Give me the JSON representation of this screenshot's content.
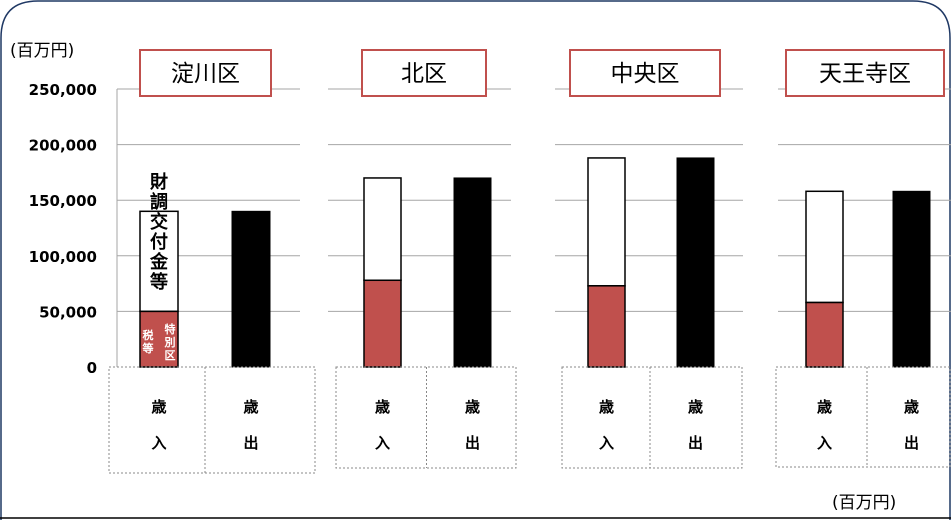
{
  "unit_label": "(百万円)",
  "unit_label_bottom": "(百万円)",
  "colors": {
    "tax_fill": "#c0504d",
    "grant_fill": "#ffffff",
    "expenditure_fill": "#000000",
    "title_border": "#c0504d",
    "frame_border": "#1f3864",
    "grid": "#a6a6a6"
  },
  "chart_data": {
    "type": "bar",
    "stacked": true,
    "ylim": [
      0,
      250000
    ],
    "y_ticks": [
      "0",
      "50,000",
      "100,000",
      "150,000",
      "200,000",
      "250,000"
    ],
    "grid": true,
    "categories": [
      "歳入",
      "歳出"
    ],
    "category_lines": [
      [
        "歳",
        "入"
      ],
      [
        "歳",
        "出"
      ]
    ],
    "annotations": {
      "grant_label": "財調交付金等",
      "tax_label_left": "税等",
      "tax_label_right": "特別区"
    },
    "panels": [
      {
        "title": "淀川区",
        "revenue": {
          "tax": 50000,
          "grant": 90000
        },
        "expenditure": 140000
      },
      {
        "title": "北区",
        "revenue": {
          "tax": 78000,
          "grant": 92000
        },
        "expenditure": 170000
      },
      {
        "title": "中央区",
        "revenue": {
          "tax": 73000,
          "grant": 115000
        },
        "expenditure": 188000
      },
      {
        "title": "天王寺区",
        "revenue": {
          "tax": 58000,
          "grant": 100000
        },
        "expenditure": 158000
      }
    ]
  }
}
